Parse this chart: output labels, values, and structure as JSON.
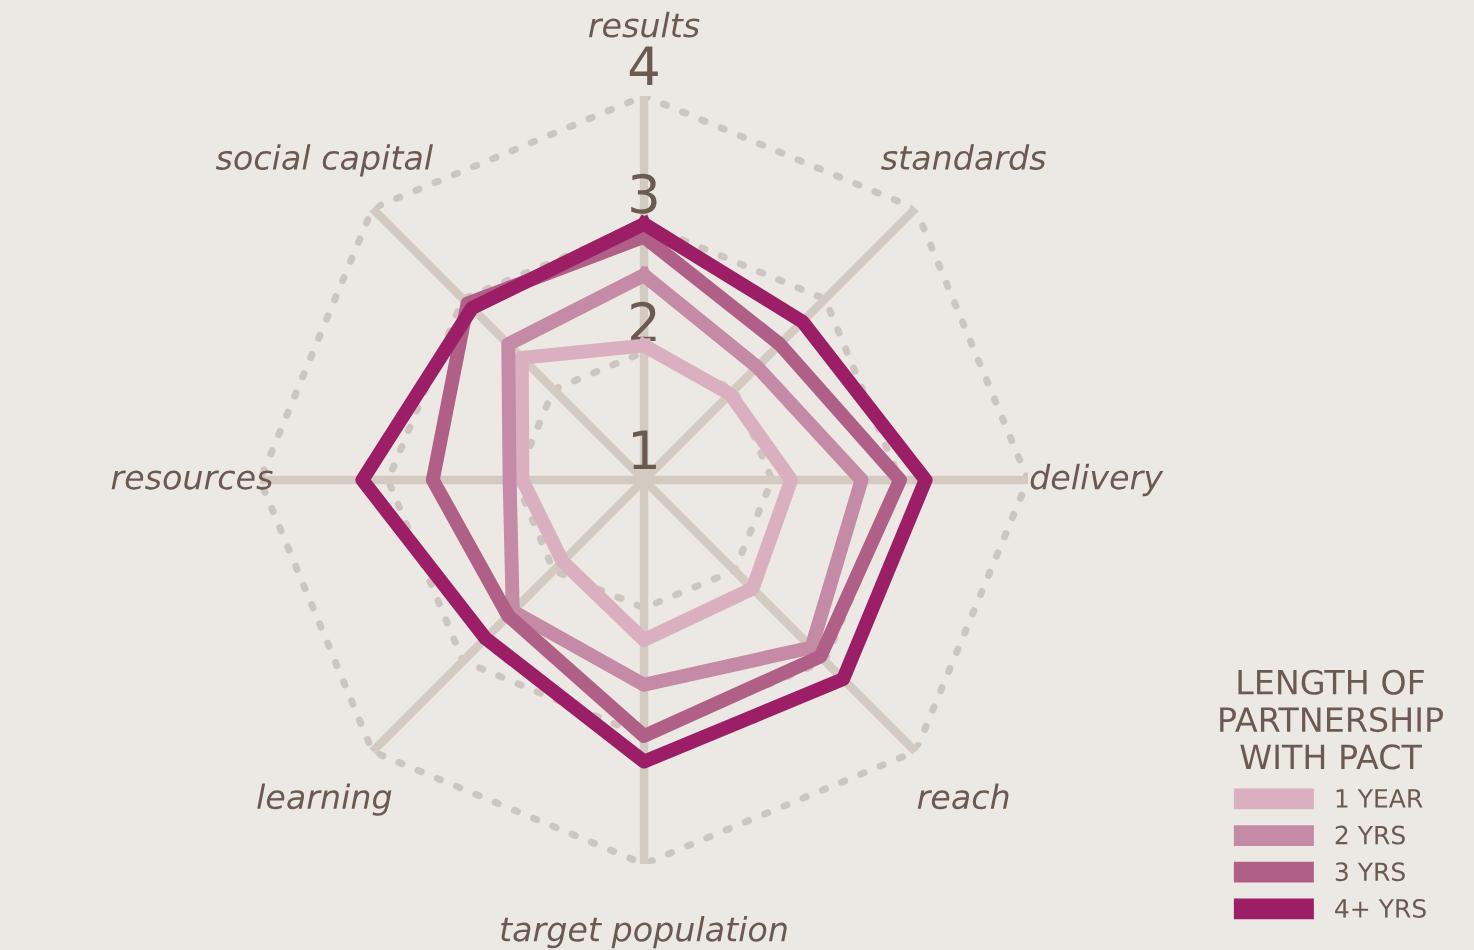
{
  "chart_data": {
    "type": "radar",
    "legend_title": "LENGTH OF\nPARTNERSHIP\nWITH PACT",
    "categories": [
      "results",
      "standards",
      "delivery",
      "reach",
      "target population",
      "learning",
      "resources",
      "social capital"
    ],
    "ylim": [
      1,
      4
    ],
    "yticks": [
      1,
      2,
      3,
      4
    ],
    "grid": true,
    "legend": "bottom right",
    "series": [
      {
        "name": "1 YEAR",
        "color": "#dab0c0",
        "values": [
          2.05,
          1.95,
          2.15,
          2.2,
          2.25,
          1.9,
          1.95,
          2.35
        ]
      },
      {
        "name": "2 YRS",
        "color": "#c58aa5",
        "values": [
          2.6,
          2.25,
          2.7,
          2.85,
          2.6,
          2.45,
          2.05,
          2.5
        ]
      },
      {
        "name": "3 YRS",
        "color": "#b06087",
        "values": [
          2.9,
          2.5,
          3.0,
          2.95,
          3.0,
          2.5,
          2.65,
          2.95
        ]
      },
      {
        "name": "4+ YRS",
        "color": "#9b1e66",
        "values": [
          3.0,
          2.75,
          3.2,
          3.2,
          3.2,
          2.75,
          3.2,
          2.9
        ]
      }
    ]
  }
}
